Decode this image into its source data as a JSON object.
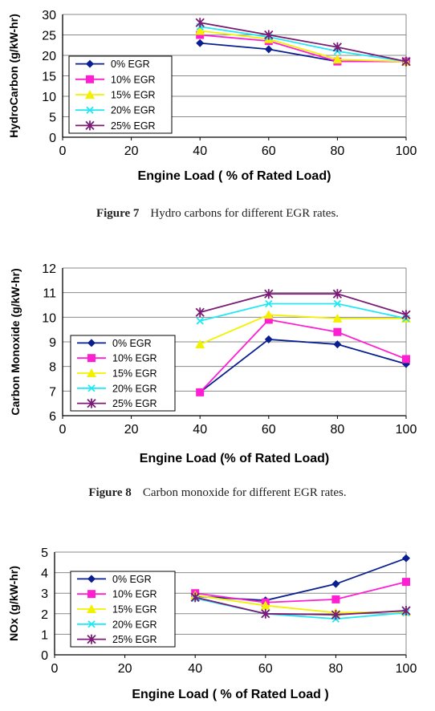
{
  "captions": [
    {
      "label": "Figure 7",
      "text": "Hydro carbons for different EGR rates."
    },
    {
      "label": "Figure 8",
      "text": "Carbon monoxide for different EGR rates."
    }
  ],
  "series_styles": [
    {
      "name": "0% EGR",
      "color": "#0a1f8f",
      "marker": "diamond"
    },
    {
      "name": "10% EGR",
      "color": "#ff1fd2",
      "marker": "square"
    },
    {
      "name": "15% EGR",
      "color": "#f2f200",
      "marker": "triangle"
    },
    {
      "name": "20% EGR",
      "color": "#22e8f5",
      "marker": "x"
    },
    {
      "name": "25% EGR",
      "color": "#7a1c76",
      "marker": "star"
    }
  ],
  "chart_data": [
    {
      "type": "line",
      "title": "",
      "xlabel": "Engine Load ( % of Rated Load)",
      "ylabel": "HydroCarbon (g/kW-hr)",
      "xlim": [
        0,
        100
      ],
      "ylim": [
        0,
        30
      ],
      "xticks": [
        0,
        20,
        40,
        60,
        80,
        100
      ],
      "yticks": [
        0,
        5,
        10,
        15,
        20,
        25,
        30
      ],
      "grid": true,
      "legend": "lower-left",
      "x": [
        40,
        60,
        80,
        100
      ],
      "series": [
        {
          "name": "0% EGR",
          "values": [
            23,
            21.5,
            18.5,
            18.5
          ]
        },
        {
          "name": "10% EGR",
          "values": [
            25,
            23.5,
            18.5,
            18.5
          ]
        },
        {
          "name": "15% EGR",
          "values": [
            26,
            24,
            19,
            18.5
          ]
        },
        {
          "name": "20% EGR",
          "values": [
            27,
            24.5,
            21,
            18.5
          ]
        },
        {
          "name": "25% EGR",
          "values": [
            28,
            25,
            22,
            18.5
          ]
        }
      ]
    },
    {
      "type": "line",
      "title": "",
      "xlabel": "Engine Load (% of Rated Load)",
      "ylabel": "Carbon Monoxide (g/kW-hr)",
      "xlim": [
        0,
        100
      ],
      "ylim": [
        6,
        12
      ],
      "xticks": [
        0,
        20,
        40,
        60,
        80,
        100
      ],
      "yticks": [
        6,
        7,
        8,
        9,
        10,
        11,
        12
      ],
      "grid": true,
      "legend": "lower-left",
      "x": [
        40,
        60,
        80,
        100
      ],
      "series": [
        {
          "name": "0% EGR",
          "values": [
            6.95,
            9.1,
            8.9,
            8.1
          ]
        },
        {
          "name": "10% EGR",
          "values": [
            6.95,
            9.9,
            9.4,
            8.3
          ]
        },
        {
          "name": "15% EGR",
          "values": [
            8.9,
            10.1,
            9.95,
            9.95
          ]
        },
        {
          "name": "20% EGR",
          "values": [
            9.85,
            10.55,
            10.55,
            9.95
          ]
        },
        {
          "name": "25% EGR",
          "values": [
            10.2,
            10.95,
            10.95,
            10.1
          ]
        }
      ]
    },
    {
      "type": "line",
      "title": "",
      "xlabel": "Engine Load ( % of Rated Load )",
      "ylabel": "NOx (g/kW-hr)",
      "xlim": [
        0,
        100
      ],
      "ylim": [
        0,
        5
      ],
      "xticks": [
        0,
        20,
        40,
        60,
        80,
        100
      ],
      "yticks": [
        0,
        1,
        2,
        3,
        4,
        5
      ],
      "grid": true,
      "legend": "left",
      "x": [
        40,
        60,
        80,
        100
      ],
      "series": [
        {
          "name": "0% EGR",
          "values": [
            2.85,
            2.65,
            3.45,
            4.7
          ]
        },
        {
          "name": "10% EGR",
          "values": [
            3.0,
            2.55,
            2.7,
            3.55
          ]
        },
        {
          "name": "15% EGR",
          "values": [
            2.9,
            2.4,
            2.05,
            2.1
          ]
        },
        {
          "name": "20% EGR",
          "values": [
            2.75,
            2.0,
            1.75,
            2.05
          ]
        },
        {
          "name": "25% EGR",
          "values": [
            2.8,
            2.0,
            1.95,
            2.15
          ]
        }
      ]
    }
  ]
}
